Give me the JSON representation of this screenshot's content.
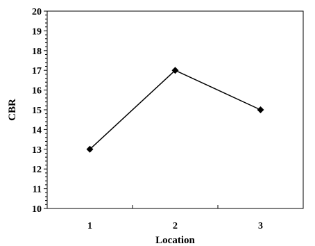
{
  "chart_data": {
    "type": "line",
    "categories": [
      "1",
      "2",
      "3"
    ],
    "series": [
      {
        "values": [
          13,
          17,
          15
        ]
      }
    ],
    "xlabel": "Location",
    "ylabel": "CBR",
    "ylim": [
      10,
      20
    ],
    "ytick_step": 1,
    "grid": false,
    "legend": "none",
    "colors": {
      "line": "#000000",
      "marker": "#000000",
      "axis": "#000000"
    },
    "marker": "diamond"
  }
}
